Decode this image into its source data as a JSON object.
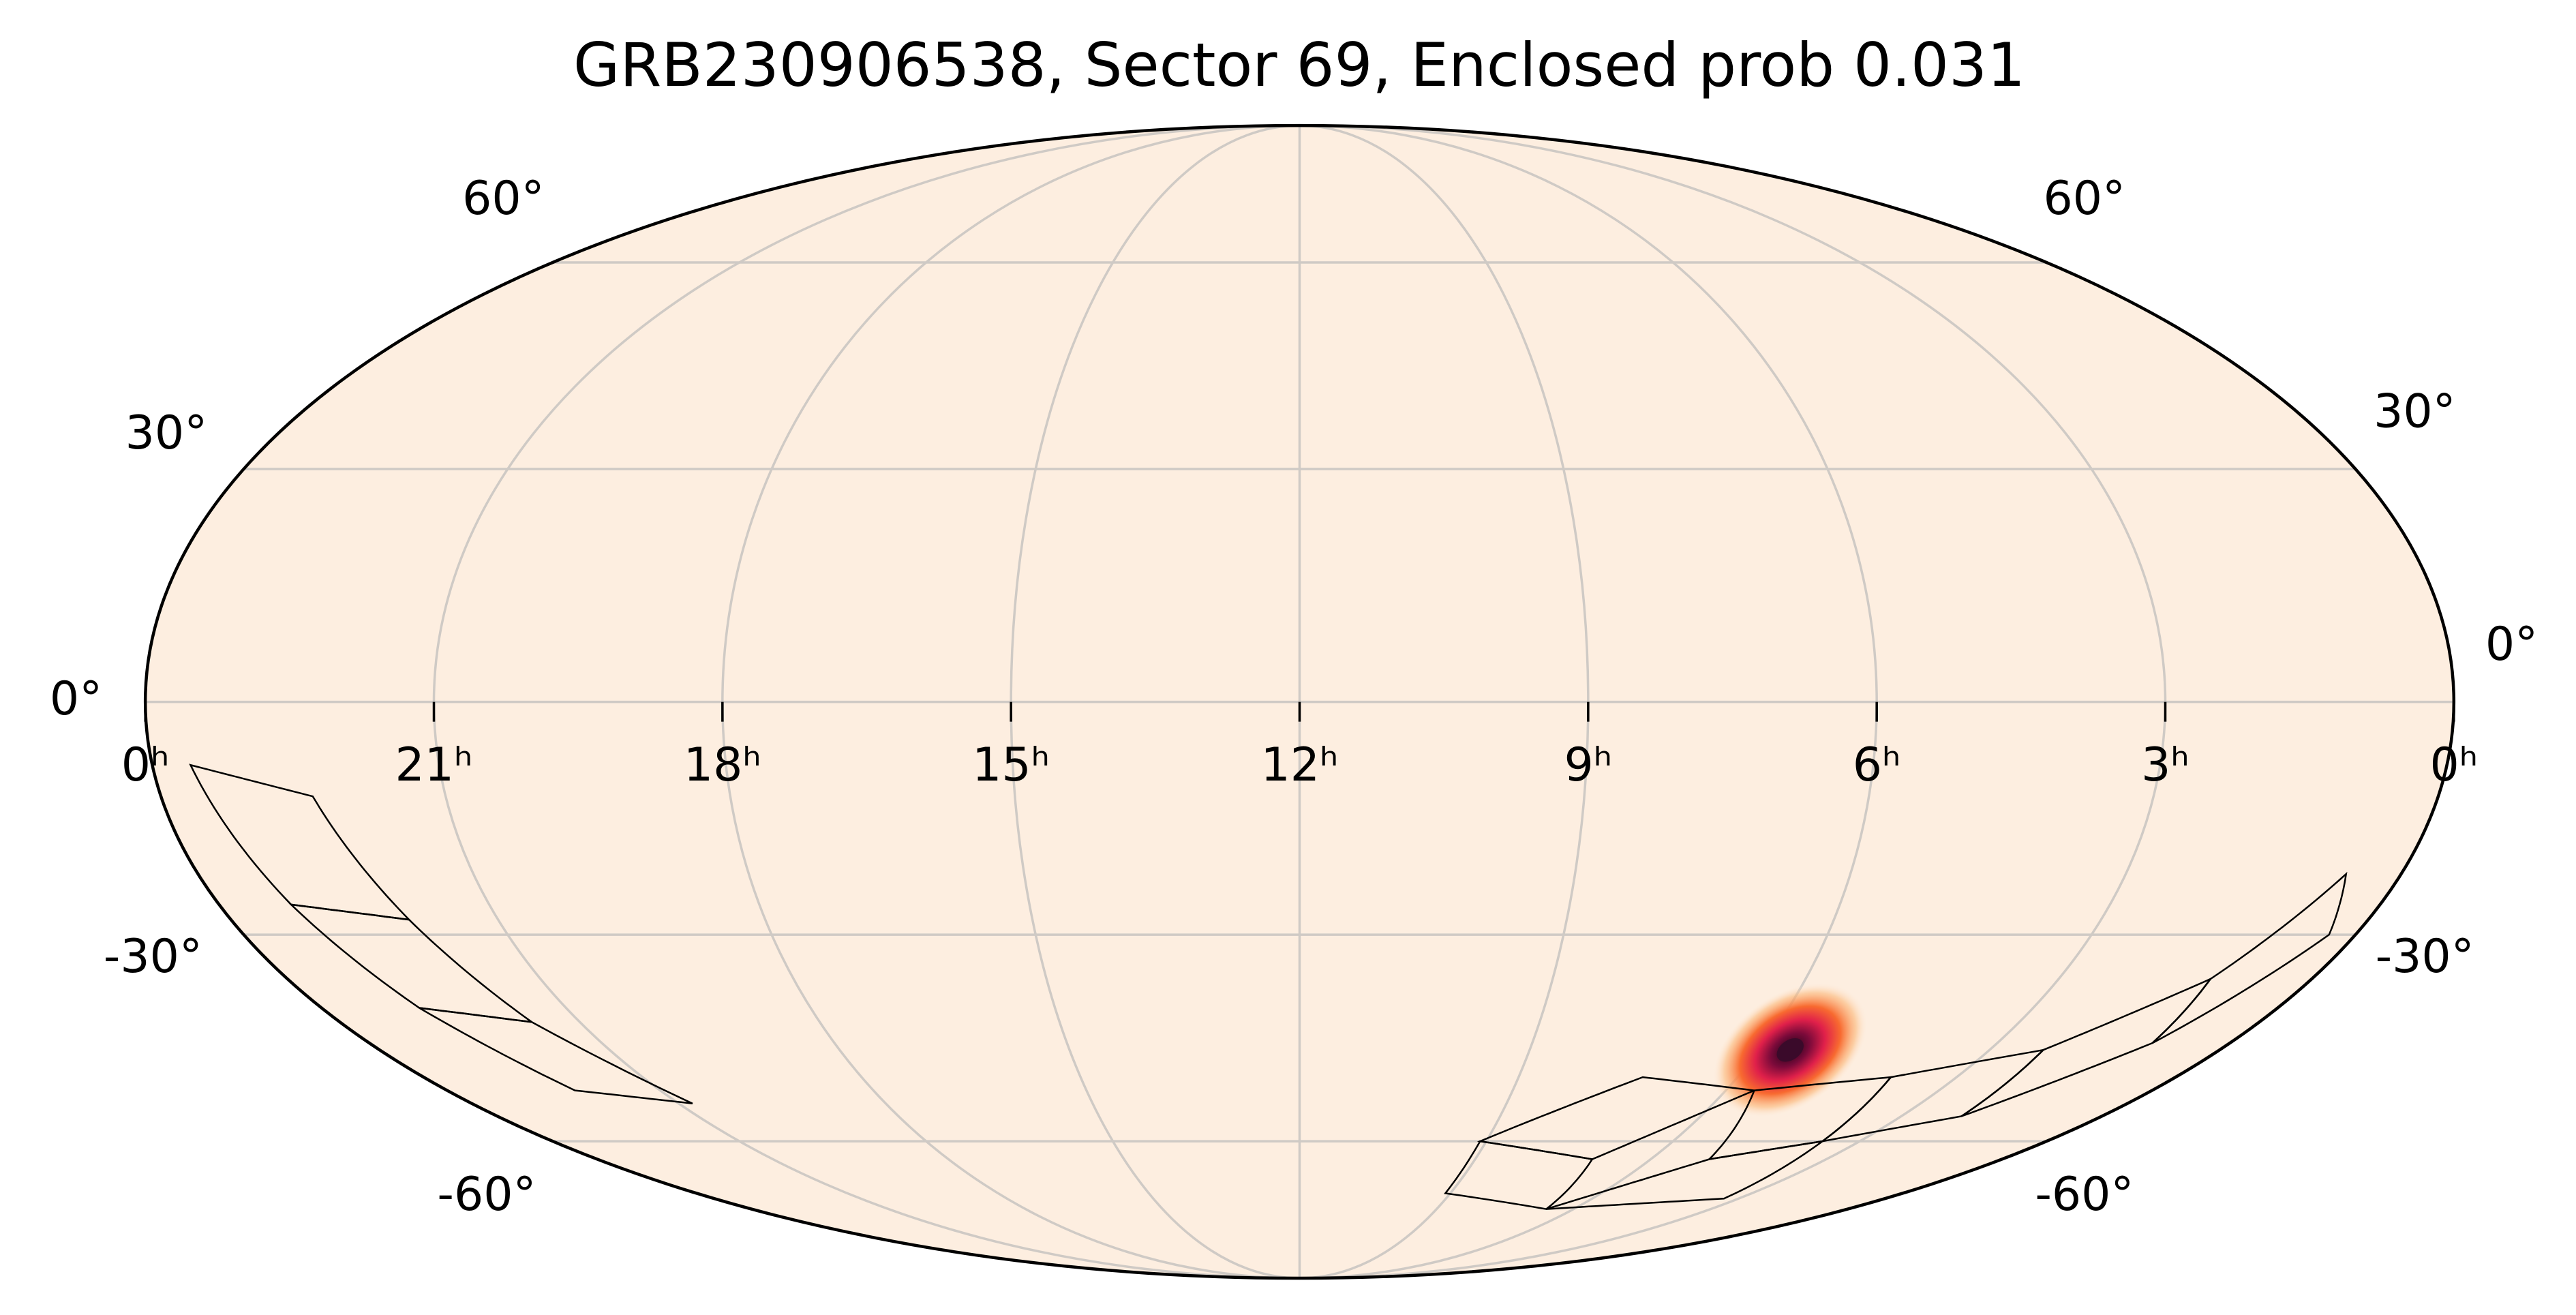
{
  "chart_data": {
    "type": "skymap",
    "projection": "mollweide",
    "title": "GRB230906538, Sector 69, Enclosed prob 0.031",
    "background_color": "#fdeee0",
    "grid": true,
    "grid_color": "#cfcac5",
    "xtick_labels": [
      "0ʰ",
      "21ʰ",
      "18ʰ",
      "15ʰ",
      "12ʰ",
      "9ʰ",
      "6ʰ",
      "3ʰ",
      "0ʰ"
    ],
    "yticks": [
      {
        "value": 60,
        "label": "60°"
      },
      {
        "value": 30,
        "label": "30°"
      },
      {
        "value": 0,
        "label": "0°"
      },
      {
        "value": -30,
        "label": "-30°"
      },
      {
        "value": -60,
        "label": "-60°"
      }
    ],
    "hotspot": {
      "ra_hours": 5.6,
      "dec": -46,
      "color": "#3a0a2a"
    },
    "footprints": [
      [
        [
          23.6,
          -8
        ],
        [
          22.4,
          -12
        ],
        [
          22.0,
          -28
        ],
        [
          23.2,
          -26
        ]
      ],
      [
        [
          23.2,
          -26
        ],
        [
          22.0,
          -28
        ],
        [
          21.6,
          -42
        ],
        [
          22.8,
          -40
        ]
      ],
      [
        [
          22.8,
          -40
        ],
        [
          21.6,
          -42
        ],
        [
          20.8,
          -54
        ],
        [
          22.2,
          -52
        ]
      ],
      [
        [
          9.1,
          -60
        ],
        [
          7.3,
          -50
        ],
        [
          5.6,
          -52
        ],
        [
          7.0,
          -63
        ]
      ],
      [
        [
          9.1,
          -69
        ],
        [
          9.1,
          -60
        ],
        [
          7.0,
          -63
        ],
        [
          6.6,
          -72
        ]
      ],
      [
        [
          5.6,
          -52
        ],
        [
          3.9,
          -50
        ],
        [
          3.6,
          -60
        ],
        [
          5.0,
          -63
        ]
      ],
      [
        [
          6.6,
          -72
        ],
        [
          5.0,
          -63
        ],
        [
          3.6,
          -60
        ],
        [
          3.3,
          -70
        ]
      ],
      [
        [
          3.9,
          -50
        ],
        [
          2.3,
          -46
        ],
        [
          2.1,
          -56
        ],
        [
          3.6,
          -60
        ]
      ],
      [
        [
          2.3,
          -46
        ],
        [
          1.2,
          -36
        ],
        [
          1.0,
          -45
        ],
        [
          2.1,
          -56
        ]
      ],
      [
        [
          1.2,
          -36
        ],
        [
          0.6,
          -22
        ],
        [
          0.3,
          -30
        ],
        [
          1.0,
          -45
        ]
      ]
    ]
  }
}
